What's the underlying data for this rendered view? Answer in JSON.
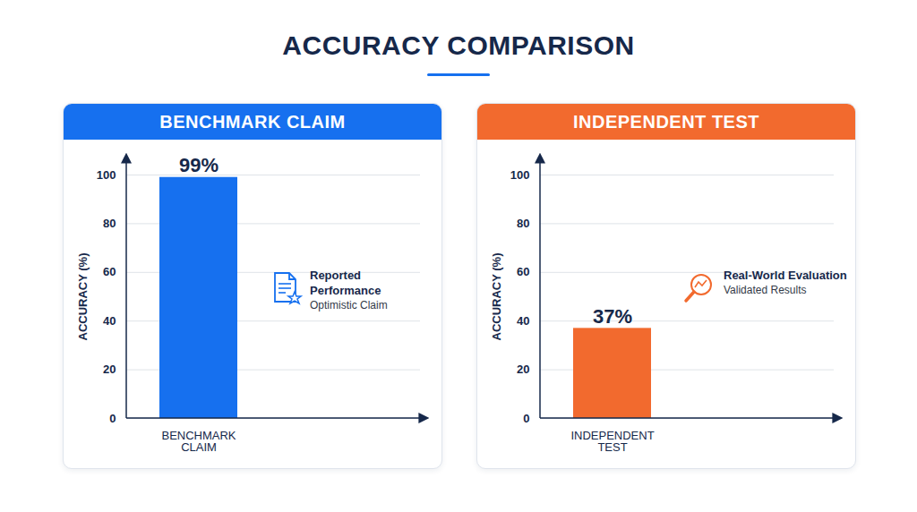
{
  "title": "ACCURACY COMPARISON",
  "chart_data": [
    {
      "type": "bar",
      "title": "BENCHMARK CLAIM",
      "categories": [
        "BENCHMARK CLAIM"
      ],
      "values": [
        99
      ],
      "value_labels": [
        "99%"
      ],
      "data_labels": true,
      "color": "#1670ef",
      "y_label": "ACCURACY (%)",
      "ylim": [
        0,
        100
      ],
      "yticks": [
        0,
        20,
        40,
        60,
        80,
        100
      ],
      "grid": true,
      "annotations": [
        {
          "title": "Reported Performance",
          "subtitle": "Optimistic Claim"
        }
      ]
    },
    {
      "type": "bar",
      "title": "INDEPENDENT TEST",
      "categories": [
        "INDEPENDENT TEST"
      ],
      "values": [
        37
      ],
      "value_labels": [
        "37%"
      ],
      "data_labels": true,
      "color": "#f26a2e",
      "y_label": "ACCURACY (%)",
      "ylim": [
        0,
        100
      ],
      "yticks": [
        0,
        20,
        40,
        60,
        80,
        100
      ],
      "grid": true,
      "annotations": [
        {
          "title": "Real-World Evaluation",
          "subtitle": "Validated Results"
        }
      ]
    }
  ]
}
